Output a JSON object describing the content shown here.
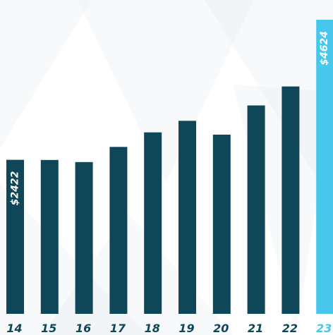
{
  "colors": {
    "bar": "#0f4658",
    "highlight_bar": "#47c7ec",
    "tick_label": "#0f4658",
    "highlight_tick_label": "#47c7ec",
    "value_label": "#ffffff",
    "background_shapes": "#e9edf3"
  },
  "chart_data": {
    "type": "bar",
    "title": "",
    "xlabel": "",
    "ylabel": "",
    "categories": [
      "14",
      "15",
      "16",
      "17",
      "18",
      "19",
      "20",
      "21",
      "22",
      "23"
    ],
    "values": [
      2422,
      2420,
      2386,
      2625,
      2853,
      3035,
      2818,
      3277,
      3575,
      4624
    ],
    "ylim": [
      0,
      4624
    ],
    "highlight_index": 9,
    "data_labels": [
      {
        "index": 0,
        "text": "$2422"
      },
      {
        "index": 9,
        "text": "$4624"
      }
    ],
    "grid": false,
    "legend": "none"
  }
}
